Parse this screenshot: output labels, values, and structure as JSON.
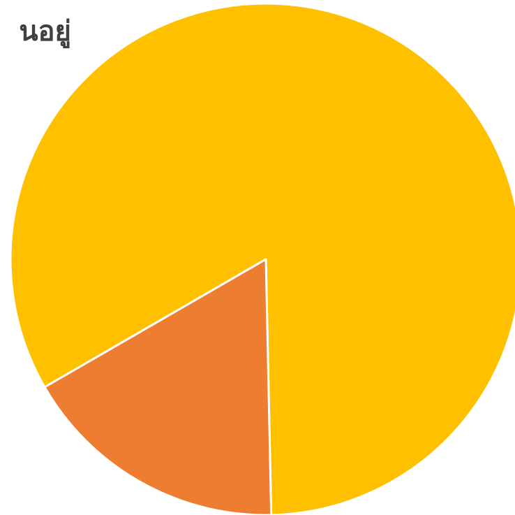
{
  "chart_data": {
    "type": "pie",
    "title": "นอยู่",
    "slices": [
      {
        "value": 83,
        "color": "#FFC000"
      },
      {
        "value": 17,
        "color": "#ED7D31"
      }
    ],
    "separator_color": "#FFFFFF"
  }
}
